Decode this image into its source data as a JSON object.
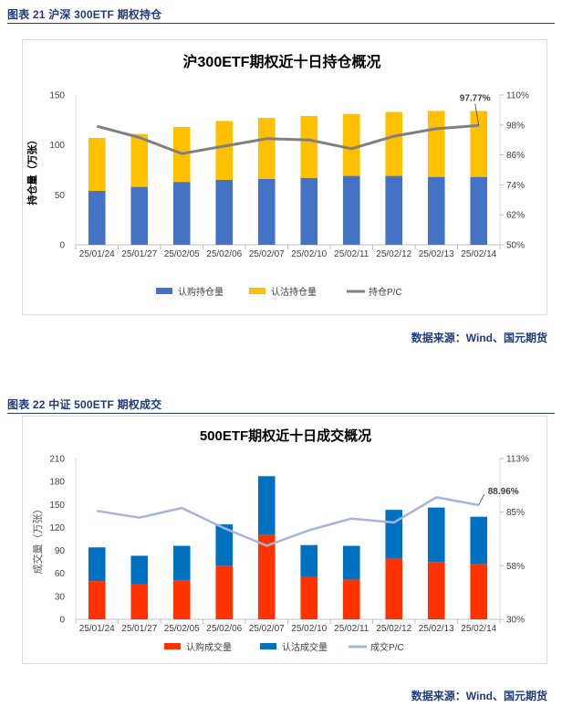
{
  "figure1": {
    "caption": "图表 21  沪深 300ETF 期权持仓",
    "source": "数据来源：Wind、国元期货"
  },
  "figure2": {
    "caption": "图表 22  中证 500ETF 期权成交",
    "source": "数据来源：Wind、国元期货"
  },
  "colors": {
    "call_blue": "#4472c4",
    "put_yellow": "#ffc000",
    "line_gray": "#7f7f7f",
    "call_red": "#ff3300",
    "put_blue": "#0070c0",
    "line_lavender": "#a6b4dc",
    "label_red": "#ff0000",
    "caption_blue": "#1f3b7a"
  },
  "chart_data": [
    {
      "type": "bar",
      "title": "沪300ETF期权近十日持仓概况",
      "stacked": true,
      "categories": [
        "25/01/24",
        "25/01/27",
        "25/02/05",
        "25/02/06",
        "25/02/07",
        "25/02/10",
        "25/02/11",
        "25/02/12",
        "25/02/13",
        "25/02/14"
      ],
      "ylabel": "持仓量（万张）",
      "ylim": [
        0,
        150
      ],
      "yticks": [
        "0",
        "50",
        "100",
        "150"
      ],
      "y2lim": [
        50,
        110
      ],
      "y2ticks": [
        "50%",
        "62%",
        "74%",
        "86%",
        "98%",
        "110%"
      ],
      "series": [
        {
          "name": "认购持仓量",
          "kind": "bar",
          "axis": "left",
          "color": "#4472c4",
          "values": [
            54,
            58,
            63,
            65,
            66,
            67,
            69,
            69,
            68,
            68
          ]
        },
        {
          "name": "认沽持仓量",
          "kind": "bar",
          "axis": "left",
          "color": "#ffc000",
          "values": [
            53,
            53,
            55,
            59,
            61,
            62,
            62,
            64,
            66,
            66
          ]
        },
        {
          "name": "持仓P/C",
          "kind": "line",
          "axis": "right",
          "color": "#7f7f7f",
          "values": [
            97.5,
            93,
            86.5,
            89.5,
            92.5,
            92,
            88.5,
            93.5,
            96.5,
            97.77
          ]
        }
      ],
      "annotation": {
        "text": "97.77%",
        "index": 9,
        "series": "持仓P/C"
      },
      "legend": "bottom",
      "grid": false
    },
    {
      "type": "bar",
      "title": "500ETF期权近十日成交概况",
      "stacked": true,
      "categories": [
        "25/01/24",
        "25/01/27",
        "25/02/05",
        "25/02/06",
        "25/02/07",
        "25/02/10",
        "25/02/11",
        "25/02/12",
        "25/02/13",
        "25/02/14"
      ],
      "ylabel": "成交量（万张）",
      "ylim": [
        0,
        210
      ],
      "yticks": [
        "0",
        "30",
        "60",
        "90",
        "120",
        "150",
        "180",
        "210"
      ],
      "y2lim": [
        30,
        113
      ],
      "y2ticks": [
        "30%",
        "58%",
        "85%",
        "113%"
      ],
      "series": [
        {
          "name": "认购成交量",
          "kind": "bar",
          "axis": "left",
          "color": "#ff3300",
          "values": [
            50,
            46,
            51,
            70,
            111,
            55,
            52,
            80,
            75,
            72
          ]
        },
        {
          "name": "认沽成交量",
          "kind": "bar",
          "axis": "left",
          "color": "#0070c0",
          "values": [
            44,
            37,
            45,
            54,
            76,
            42,
            44,
            63,
            71,
            62
          ]
        },
        {
          "name": "成交P/C",
          "kind": "line",
          "axis": "right",
          "color": "#a6b4dc",
          "values": [
            86,
            82.5,
            87.5,
            77,
            68,
            76,
            82,
            80,
            93,
            88.96
          ]
        }
      ],
      "annotation": {
        "text": "88.96%",
        "index": 9,
        "series": "成交P/C"
      },
      "legend": "bottom",
      "grid": false
    }
  ]
}
